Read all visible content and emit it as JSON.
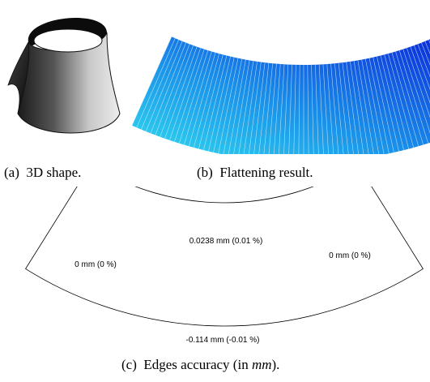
{
  "panel_a": {
    "caption_prefix": "(a)",
    "caption_text": "3D shape."
  },
  "panel_b": {
    "caption_prefix": "(b)",
    "caption_text": "Flattening result."
  },
  "panel_c": {
    "caption_prefix": "(c)",
    "caption_text_before": "Edges accuracy (in ",
    "caption_unit": "mm",
    "caption_text_after": ").",
    "labels": {
      "top_edge": "0.0238 mm (0.01 %)",
      "left_edge": "0 mm (0 %)",
      "right_edge": "0 mm (0 %)",
      "bottom_edge": "-0.114 mm (-0.01 %)"
    }
  },
  "colors": {
    "shape_dark": "#111111",
    "shape_light": "#e0e0e0",
    "flat_outer": "#0a1fd8",
    "flat_inner": "#33e0f0",
    "outline": "#000000"
  }
}
